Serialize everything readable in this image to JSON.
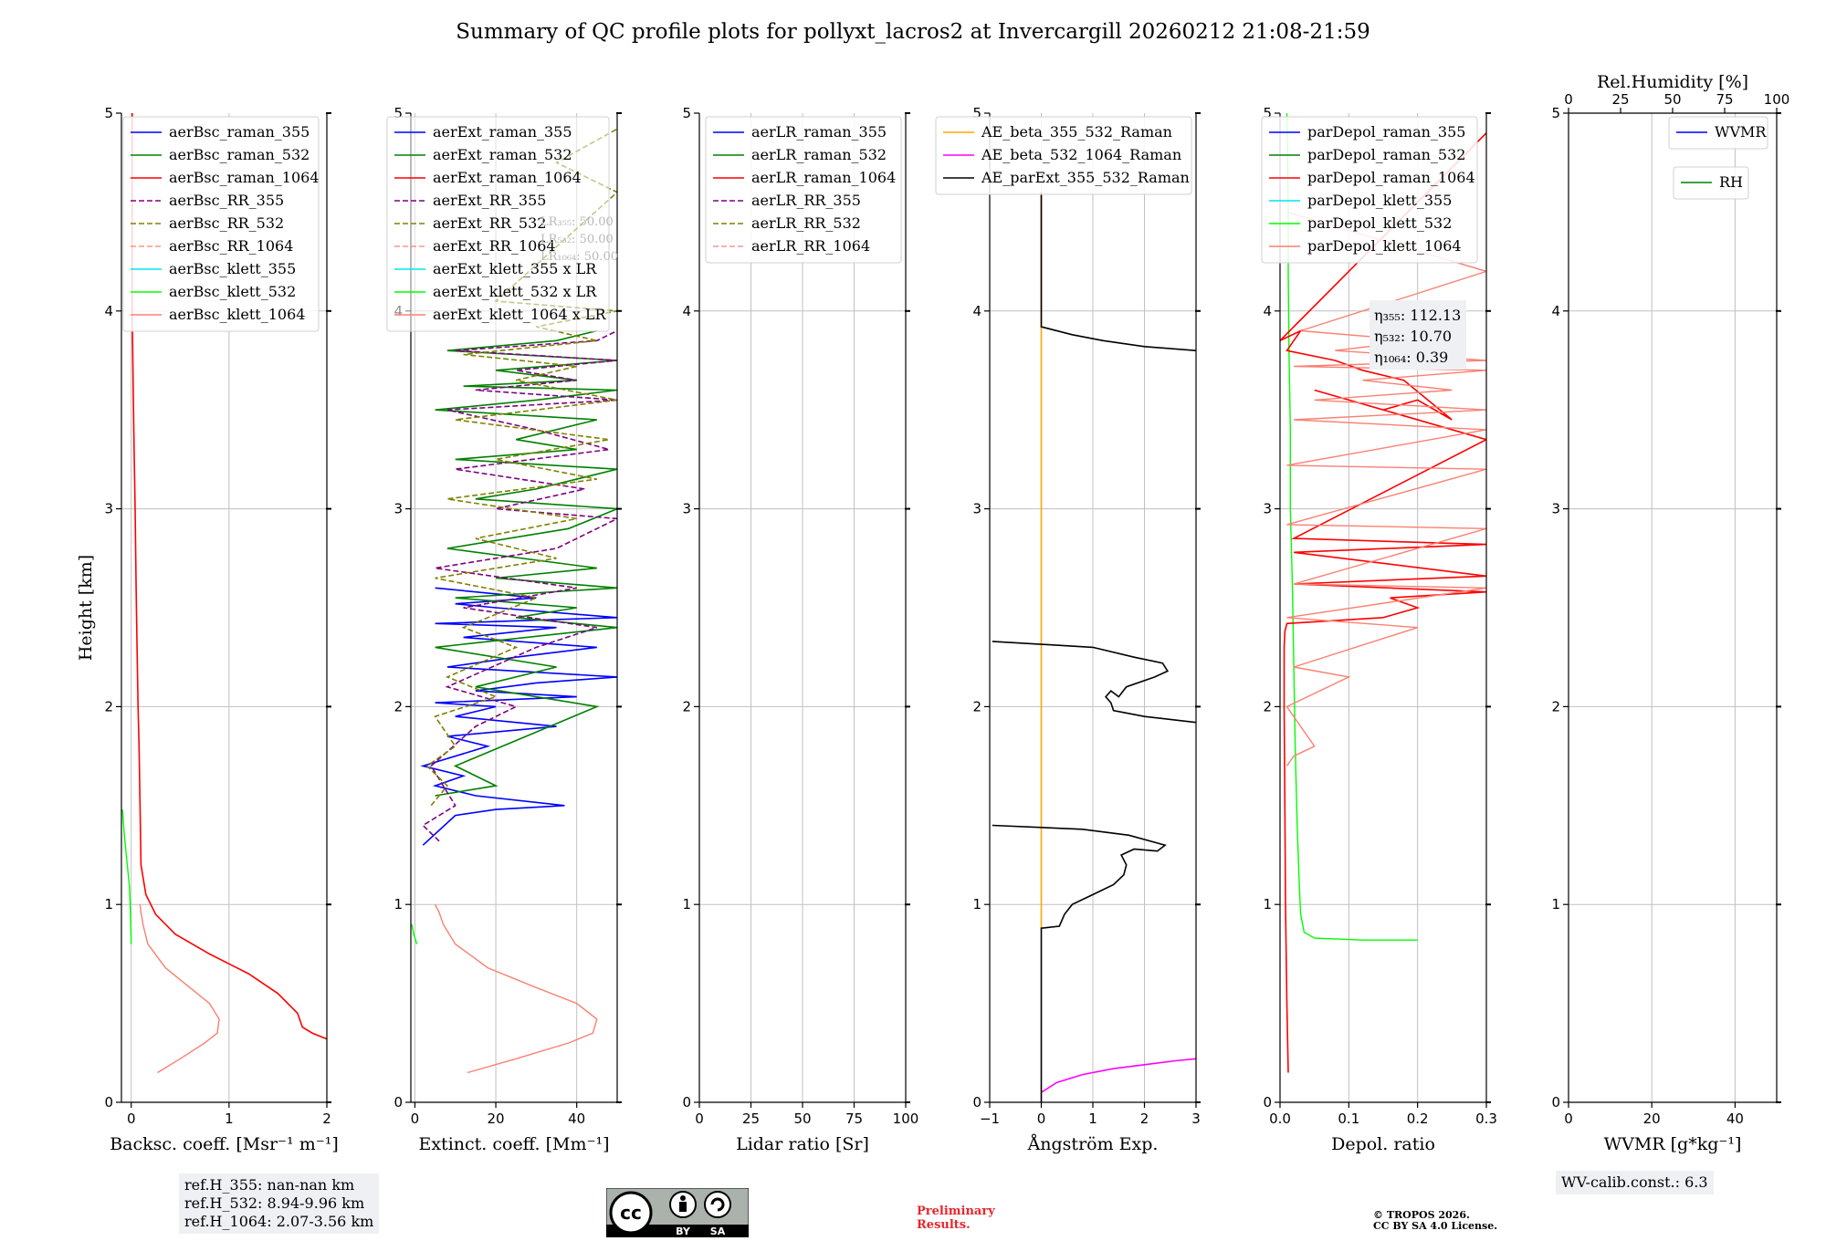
{
  "title": "Summary of QC profile plots for pollyxt_lacros2 at Invercargill 20260212 21:08-21:59",
  "colors": {
    "raman355": "#0000ff",
    "raman532": "#008000",
    "raman1064": "#ff0000",
    "rr355": "#800080",
    "rr532": "#808000",
    "rr1064": "#fa8072",
    "klett355": "#00e5ee",
    "klett532": "#00ff00",
    "klett1064": "#fa8072",
    "ae1": "#ffa500",
    "ae2": "#ff00ff",
    "ae3": "#000000",
    "wvmr": "#0000ff",
    "rh": "#008000",
    "grid": "#c0c0c0"
  },
  "chart_data": [
    {
      "id": "bsc",
      "type": "line",
      "ylabel": "Height [km]",
      "xlabel": "Backsc. coeff. [Msr⁻¹ m⁻¹]",
      "xlim": [
        -0.1,
        2.0
      ],
      "ylim": [
        0,
        5
      ],
      "xticks": [
        0,
        1,
        2
      ],
      "xtick_labels": [
        "0",
        "1",
        "2"
      ],
      "yticks": [
        0,
        1,
        2,
        3,
        4,
        5
      ],
      "ytick_labels": [
        "0",
        "1",
        "2",
        "3",
        "4",
        "5"
      ],
      "legend": [
        "aerBsc_raman_355",
        "aerBsc_raman_532",
        "aerBsc_raman_1064",
        "aerBsc_RR_355",
        "aerBsc_RR_532",
        "aerBsc_RR_1064",
        "aerBsc_klett_355",
        "aerBsc_klett_532",
        "aerBsc_klett_1064"
      ],
      "series": [
        {
          "name": "aerBsc_raman_1064",
          "x": [
            2.0,
            1.85,
            1.75,
            1.7,
            1.5,
            1.2,
            0.8,
            0.45,
            0.25,
            0.15,
            0.1,
            0.09,
            0.08,
            0.07,
            0.06,
            0.05,
            0.04,
            0.03,
            0.02,
            0.01,
            0.01,
            0.01
          ],
          "y": [
            0.32,
            0.35,
            0.38,
            0.45,
            0.55,
            0.65,
            0.75,
            0.85,
            0.95,
            1.05,
            1.2,
            1.5,
            1.8,
            2.0,
            2.3,
            2.6,
            3.0,
            3.3,
            3.6,
            4.0,
            4.5,
            5.0
          ]
        },
        {
          "name": "aerBsc_klett_532",
          "x": [
            0.0,
            -0.01,
            -0.02,
            -0.04,
            -0.07,
            -0.09
          ],
          "y": [
            0.8,
            1.0,
            1.1,
            1.2,
            1.35,
            1.48
          ]
        },
        {
          "name": "aerBsc_klett_1064",
          "x": [
            0.27,
            0.5,
            0.75,
            0.88,
            0.9,
            0.8,
            0.6,
            0.35,
            0.17,
            0.12,
            0.1,
            0.09
          ],
          "y": [
            0.15,
            0.22,
            0.3,
            0.35,
            0.42,
            0.5,
            0.58,
            0.68,
            0.8,
            0.9,
            0.96,
            1.0
          ]
        }
      ]
    },
    {
      "id": "ext",
      "type": "line",
      "xlabel": "Extinct. coeff. [Mm⁻¹]",
      "xlim": [
        -1,
        50
      ],
      "ylim": [
        0,
        5
      ],
      "xticks": [
        0,
        20,
        40
      ],
      "xtick_labels": [
        "0",
        "20",
        "40"
      ],
      "yticks": [
        0,
        1,
        2,
        3,
        4,
        5
      ],
      "ytick_labels": [
        "0",
        "1",
        "2",
        "3",
        "4",
        "5"
      ],
      "legend": [
        "aerExt_raman_355",
        "aerExt_raman_532",
        "aerExt_raman_1064",
        "aerExt_RR_355",
        "aerExt_RR_532",
        "aerExt_RR_1064",
        "aerExt_klett_355 x LR",
        "aerExt_klett_532 x LR",
        "aerExt_klett_1064 x LR"
      ],
      "lr_labels": [
        "LR₃₅₅: 50.00",
        "LR₅₃₂: 50.00",
        "LR₁₀₆₄: 50.00"
      ],
      "series": [
        {
          "name": "aerExt_klett_1064 x LR",
          "x": [
            13,
            25,
            38,
            44,
            45,
            40,
            30,
            18,
            10,
            7,
            6,
            5
          ],
          "y": [
            0.15,
            0.22,
            0.3,
            0.35,
            0.42,
            0.5,
            0.58,
            0.68,
            0.8,
            0.9,
            0.96,
            1.0
          ]
        },
        {
          "name": "aerExt_klett_532 x LR",
          "x": [
            0.5,
            -0.3,
            -0.8
          ],
          "y": [
            0.8,
            0.85,
            0.9
          ]
        },
        {
          "name": "aerExt_raman_355",
          "x": [
            2,
            10,
            20,
            37,
            15,
            5,
            12,
            2,
            18,
            8,
            35,
            10,
            20,
            5,
            40,
            15,
            30,
            50,
            8,
            25,
            45,
            12,
            35,
            5,
            50,
            20,
            10,
            30,
            5
          ],
          "y": [
            1.3,
            1.45,
            1.48,
            1.5,
            1.55,
            1.6,
            1.65,
            1.7,
            1.8,
            1.85,
            1.9,
            1.95,
            2.0,
            2.02,
            2.05,
            2.08,
            2.12,
            2.15,
            2.2,
            2.25,
            2.3,
            2.35,
            2.4,
            2.42,
            2.45,
            2.5,
            2.52,
            2.55,
            2.6
          ]
        },
        {
          "name": "aerExt_raman_532",
          "x": [
            5,
            20,
            10,
            45,
            15,
            35,
            5,
            50,
            25,
            40,
            10,
            50,
            20,
            45,
            8,
            38,
            50,
            15,
            30,
            50,
            10,
            40,
            25,
            45,
            5,
            30,
            50,
            12,
            40,
            20,
            50,
            8,
            35,
            45
          ],
          "y": [
            1.55,
            1.6,
            1.7,
            2.0,
            2.1,
            2.2,
            2.3,
            2.4,
            2.45,
            2.5,
            2.55,
            2.6,
            2.65,
            2.7,
            2.8,
            2.9,
            3.0,
            3.05,
            3.1,
            3.2,
            3.25,
            3.3,
            3.35,
            3.45,
            3.5,
            3.55,
            3.6,
            3.62,
            3.65,
            3.7,
            3.75,
            3.8,
            3.85,
            3.9
          ]
        },
        {
          "name": "aerExt_RR_355",
          "x": [
            6,
            2,
            10,
            4,
            15,
            25,
            8,
            30,
            45,
            12,
            40,
            5,
            35,
            50,
            20,
            42,
            10,
            48,
            30,
            8,
            50,
            15,
            40,
            25,
            50,
            10,
            45,
            50
          ],
          "y": [
            1.32,
            1.4,
            1.5,
            1.7,
            1.9,
            2.0,
            2.1,
            2.3,
            2.4,
            2.5,
            2.6,
            2.7,
            2.8,
            2.95,
            3.0,
            3.1,
            3.2,
            3.3,
            3.4,
            3.5,
            3.55,
            3.6,
            3.65,
            3.7,
            3.75,
            3.8,
            3.85,
            3.9
          ]
        },
        {
          "name": "aerExt_RR_532",
          "x": [
            4,
            8,
            3,
            10,
            5,
            20,
            8,
            25,
            12,
            30,
            5,
            35,
            15,
            40,
            8,
            45,
            20,
            48,
            10,
            50,
            25,
            40,
            12,
            45,
            30,
            50,
            20,
            50,
            35,
            50
          ],
          "y": [
            1.5,
            1.6,
            1.7,
            1.8,
            1.95,
            2.05,
            2.15,
            2.3,
            2.4,
            2.55,
            2.65,
            2.75,
            2.85,
            2.95,
            3.05,
            3.15,
            3.25,
            3.35,
            3.45,
            3.55,
            3.65,
            3.72,
            3.78,
            3.85,
            3.92,
            4.0,
            4.05,
            4.6,
            4.75,
            4.92
          ]
        }
      ]
    },
    {
      "id": "lr",
      "type": "line",
      "xlabel": "Lidar ratio [Sr]",
      "xlim": [
        0,
        100
      ],
      "ylim": [
        0,
        5
      ],
      "xticks": [
        0,
        25,
        50,
        75,
        100
      ],
      "xtick_labels": [
        "0",
        "25",
        "50",
        "75",
        "100"
      ],
      "yticks": [
        0,
        1,
        2,
        3,
        4,
        5
      ],
      "ytick_labels": [
        "0",
        "1",
        "2",
        "3",
        "4",
        "5"
      ],
      "legend": [
        "aerLR_raman_355",
        "aerLR_raman_532",
        "aerLR_raman_1064",
        "aerLR_RR_355",
        "aerLR_RR_532",
        "aerLR_RR_1064"
      ],
      "series": []
    },
    {
      "id": "ae",
      "type": "line",
      "xlabel": "Ångström Exp.",
      "xlim": [
        -1,
        3
      ],
      "ylim": [
        0,
        5
      ],
      "xticks": [
        -1,
        0,
        1,
        2,
        3
      ],
      "xtick_labels": [
        "−1",
        "0",
        "1",
        "2",
        "3"
      ],
      "yticks": [
        0,
        1,
        2,
        3,
        4,
        5
      ],
      "ytick_labels": [
        "0",
        "1",
        "2",
        "3",
        "4",
        "5"
      ],
      "legend": [
        "AE_beta_355_532_Raman",
        "AE_beta_532_1064_Raman",
        "AE_parExt_355_532_Raman"
      ],
      "series": [
        {
          "name": "AE_beta_355_532_Raman",
          "x": [
            0,
            0
          ],
          "y": [
            0.88,
            4.6
          ]
        },
        {
          "name": "AE_beta_532_1064_Raman",
          "x": [
            0.0,
            0.3,
            0.8,
            1.4,
            2.0,
            2.6,
            3.0
          ],
          "y": [
            0.05,
            0.1,
            0.14,
            0.17,
            0.19,
            0.21,
            0.22
          ]
        },
        {
          "name": "AE_parExt_355_532_Raman",
          "x": [
            0,
            0,
            0.35,
            0.45,
            0.6,
            1.0,
            1.4,
            1.6,
            1.65,
            1.55,
            1.8,
            2.25,
            2.4,
            1.7,
            0.8,
            -0.95
          ],
          "y": [
            0,
            0.88,
            0.89,
            0.95,
            1.0,
            1.05,
            1.1,
            1.15,
            1.2,
            1.25,
            1.28,
            1.27,
            1.3,
            1.35,
            1.38,
            1.4
          ]
        },
        {
          "name": "AE_parExt_355_532_Raman",
          "x": [
            3.0,
            2.0,
            1.4,
            1.35,
            1.25,
            1.35,
            1.5,
            1.65,
            2.2,
            2.45,
            2.35,
            1.8,
            1.0,
            -0.95
          ],
          "y": [
            1.92,
            1.95,
            1.98,
            2.02,
            2.05,
            2.08,
            2.05,
            2.1,
            2.15,
            2.18,
            2.22,
            2.25,
            2.3,
            2.33
          ]
        },
        {
          "name": "AE_parExt_355_532_Raman",
          "x": [
            3.0,
            2.0,
            1.2,
            0.6,
            0.0,
            0.0
          ],
          "y": [
            3.8,
            3.82,
            3.85,
            3.88,
            3.92,
            4.6
          ]
        }
      ]
    },
    {
      "id": "depol",
      "type": "line",
      "xlabel": "Depol. ratio",
      "xlim": [
        0,
        0.3
      ],
      "ylim": [
        0,
        5
      ],
      "xticks": [
        0,
        0.1,
        0.2,
        0.3
      ],
      "xtick_labels": [
        "0.0",
        "0.1",
        "0.2",
        "0.3"
      ],
      "yticks": [
        0,
        1,
        2,
        3,
        4,
        5
      ],
      "ytick_labels": [
        "0",
        "1",
        "2",
        "3",
        "4",
        "5"
      ],
      "legend": [
        "parDepol_raman_355",
        "parDepol_raman_532",
        "parDepol_raman_1064",
        "parDepol_klett_355",
        "parDepol_klett_532",
        "parDepol_klett_1064"
      ],
      "eta": [
        "η₃₅₅: 112.13",
        "η₅₃₂: 10.70",
        "η₁₀₆₄: 0.39"
      ],
      "series": [
        {
          "name": "parDepol_klett_532",
          "x": [
            0.2,
            0.12,
            0.05,
            0.035,
            0.03,
            0.028,
            0.025,
            0.022,
            0.02,
            0.018,
            0.015,
            0.015,
            0.013,
            0.012,
            0.012,
            0.011,
            0.01
          ],
          "y": [
            0.82,
            0.82,
            0.83,
            0.86,
            0.95,
            1.1,
            1.4,
            1.8,
            2.2,
            2.6,
            3.0,
            3.4,
            3.8,
            4.2,
            4.5,
            4.8,
            5.0
          ]
        },
        {
          "name": "parDepol_raman_1064",
          "x": [
            0.012,
            0.01,
            0.008,
            0.007,
            0.006,
            0.006,
            0.007,
            0.01,
            0.15,
            0.2,
            0.16,
            0.3,
            0.02,
            0.3,
            0.02,
            0.3,
            0.02,
            0.3,
            0.05,
            0.15,
            0.2,
            0.25,
            0.18,
            0.12,
            0.08,
            0.01,
            0.03,
            0.0,
            0.3
          ],
          "y": [
            0.15,
            0.5,
            1.0,
            1.5,
            2.0,
            2.3,
            2.38,
            2.42,
            2.45,
            2.5,
            2.55,
            2.58,
            2.62,
            2.66,
            2.78,
            2.82,
            2.85,
            3.35,
            3.6,
            3.5,
            3.55,
            3.45,
            3.65,
            3.7,
            3.75,
            3.8,
            3.9,
            3.85,
            4.9
          ]
        },
        {
          "name": "parDepol_klett_1064",
          "x": [
            0.01,
            0.02,
            0.05,
            0.01,
            0.1,
            0.02,
            0.2,
            0.01,
            0.3,
            0.02,
            0.3,
            0.01,
            0.3,
            0.01,
            0.3,
            0.02,
            0.3,
            0.05,
            0.25,
            0.12,
            0.3,
            0.02,
            0.3,
            0.08,
            0.2,
            0.03,
            0.3,
            0.01
          ],
          "y": [
            1.7,
            1.75,
            1.8,
            2.0,
            2.15,
            2.2,
            2.4,
            2.45,
            2.6,
            2.62,
            2.9,
            2.92,
            3.2,
            3.22,
            3.4,
            3.45,
            3.5,
            3.55,
            3.6,
            3.65,
            3.7,
            3.72,
            3.75,
            3.8,
            3.85,
            3.9,
            4.2,
            4.5
          ]
        }
      ]
    },
    {
      "id": "wv",
      "type": "line",
      "xlabel": "WVMR [g*kg⁻¹]",
      "xlim": [
        0,
        50
      ],
      "ylim": [
        0,
        5
      ],
      "xticks": [
        0,
        20,
        40
      ],
      "xtick_labels": [
        "0",
        "20",
        "40"
      ],
      "yticks": [
        0,
        1,
        2,
        3,
        4,
        5
      ],
      "ytick_labels": [
        "0",
        "1",
        "2",
        "3",
        "4",
        "5"
      ],
      "top_xlabel": "Rel.Humidity [%]",
      "top_xlim": [
        0,
        100
      ],
      "top_xticks": [
        0,
        25,
        50,
        75,
        100
      ],
      "top_xtick_labels": [
        "0",
        "25",
        "50",
        "75",
        "100"
      ],
      "legend": [
        "WVMR",
        "RH"
      ],
      "series": []
    }
  ],
  "refh": [
    "ref.H_355: nan-nan km",
    "ref.H_532: 8.94-9.96 km",
    "ref.H_1064: 2.07-3.56 km"
  ],
  "wv_calib": "WV-calib.const.: 6.3",
  "preliminary": [
    "Preliminary",
    "Results."
  ],
  "copyright": [
    "© TROPOS 2026.",
    "CC BY SA 4.0 License."
  ],
  "cc_badge": {
    "label_by": "BY",
    "label_sa": "SA",
    "cc": "cc"
  }
}
